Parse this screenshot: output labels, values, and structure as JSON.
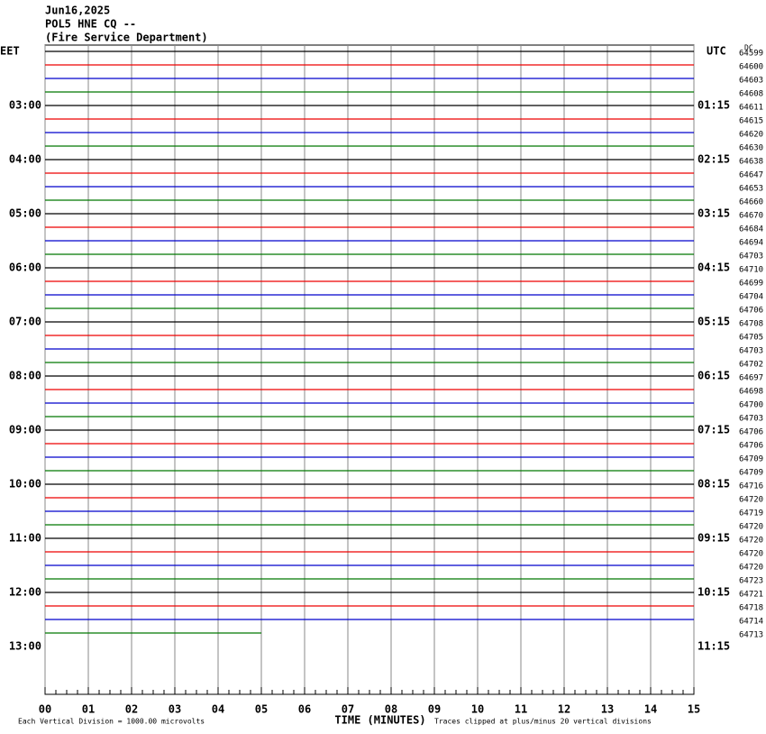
{
  "header": {
    "date": "Jun16,2025",
    "station": "POL5 HNE CQ --",
    "agency": "(Fire Service Department)"
  },
  "left": {
    "zone": "EET",
    "hours": [
      "03:00",
      "04:00",
      "05:00",
      "06:00",
      "07:00",
      "08:00",
      "09:00",
      "10:00",
      "11:00",
      "12:00",
      "13:00"
    ]
  },
  "right": {
    "zone": "UTC",
    "times": [
      "01:15",
      "02:15",
      "03:15",
      "04:15",
      "05:15",
      "06:15",
      "07:15",
      "08:15",
      "09:15",
      "10:15",
      "11:15"
    ]
  },
  "dc_label": "DC",
  "dc_offsets": [
    64599,
    64600,
    64603,
    64608,
    64611,
    64615,
    64620,
    64630,
    64638,
    64647,
    64653,
    64660,
    64670,
    64684,
    64694,
    64703,
    64710,
    64699,
    64704,
    64706,
    64708,
    64705,
    64703,
    64702,
    64697,
    64698,
    64700,
    64703,
    64706,
    64706,
    64709,
    64709,
    64716,
    64720,
    64719,
    64720,
    64720,
    64720,
    64720,
    64723,
    64721,
    64718,
    64714,
    64713
  ],
  "x_axis": {
    "title": "TIME (MINUTES)",
    "ticks": [
      "00",
      "01",
      "02",
      "03",
      "04",
      "05",
      "06",
      "07",
      "08",
      "09",
      "10",
      "11",
      "12",
      "13",
      "14",
      "15"
    ]
  },
  "footer": {
    "scale": "Each Vertical Division = 1000.00 microvolts",
    "clip": "Traces clipped at plus/minus 20 vertical divisions"
  }
}
